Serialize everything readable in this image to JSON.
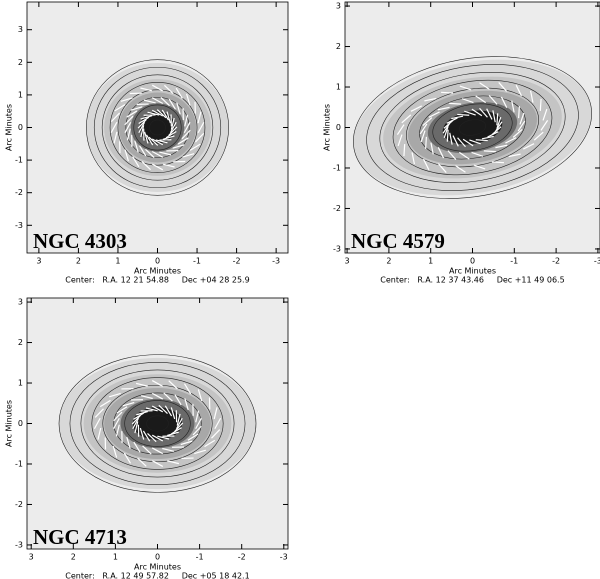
{
  "panels": [
    {
      "name": "NGC 4303",
      "x_label": "Arc Minutes",
      "y_label": "Arc Minutes",
      "center": "Center:   R.A. 12 21 54.88     Dec +04 28 25.9",
      "xlim": [
        3.3,
        -3.3
      ],
      "ylim": [
        -3.85,
        3.85
      ],
      "xticks": [
        3,
        2,
        1,
        0,
        -1,
        -2,
        -3
      ],
      "yticks": [
        3,
        2,
        1,
        0,
        -1,
        -2,
        -3
      ]
    },
    {
      "name": "NGC 4579",
      "x_label": "Arc Minutes",
      "y_label": "Arc Minutes",
      "center": "Center:   R.A. 12 37 43.46     Dec +11 49 06.5",
      "xlim": [
        3.05,
        -3.05
      ],
      "ylim": [
        -3.1,
        3.1
      ],
      "xticks": [
        3,
        2,
        1,
        0,
        -1,
        -2,
        -3
      ],
      "yticks": [
        3,
        2,
        1,
        0,
        -1,
        -2,
        -3
      ]
    },
    {
      "name": "NGC 4713",
      "x_label": "Arc Minutes",
      "y_label": "Arc Minutes",
      "center": "Center:   R.A. 12 49 57.82     Dec +05 18 42.1",
      "xlim": [
        3.1,
        -3.1
      ],
      "ylim": [
        -3.1,
        3.1
      ],
      "xticks": [
        3,
        2,
        1,
        0,
        -1,
        -2,
        -3
      ],
      "yticks": [
        3,
        2,
        1,
        0,
        -1,
        -2,
        -3
      ]
    }
  ]
}
